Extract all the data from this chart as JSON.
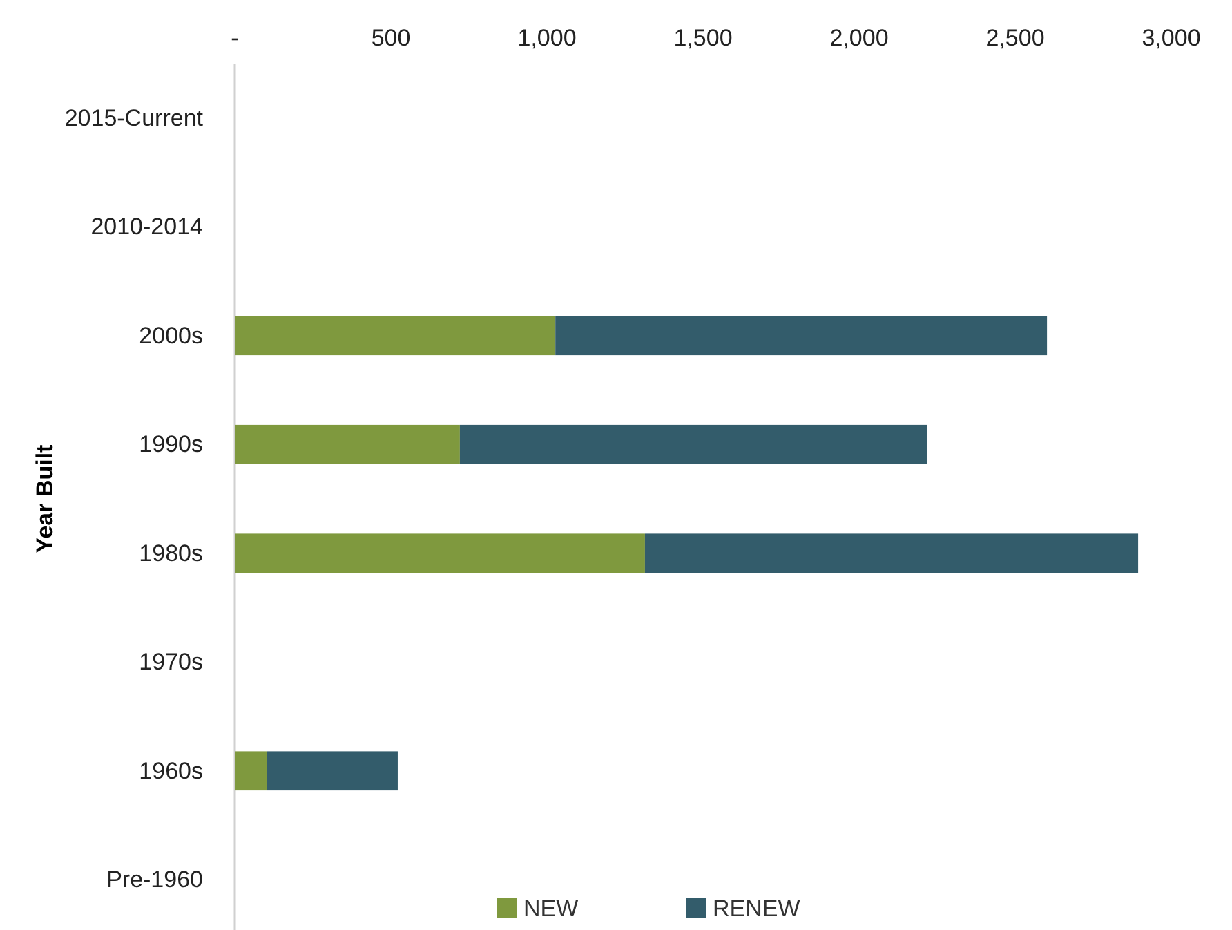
{
  "chart_data": {
    "type": "bar",
    "orientation": "horizontal",
    "stacked": true,
    "ylabel": "Year Built",
    "categories": [
      "2015-Current",
      "2010-2014",
      "2000s",
      "1990s",
      "1980s",
      "1970s",
      "1960s",
      "Pre-1960"
    ],
    "series": [
      {
        "name": "NEW",
        "color": "#7f993e",
        "values": [
          null,
          null,
          1027,
          721,
          1314,
          null,
          102,
          null
        ]
      },
      {
        "name": "RENEW",
        "color": "#335c6b",
        "values": [
          null,
          null,
          1575,
          1496,
          1580,
          null,
          420,
          null
        ]
      }
    ],
    "xlim": [
      0,
      3000
    ],
    "xticks": [
      {
        "value": 0,
        "label": "-"
      },
      500,
      {
        "value": 1000,
        "label": "1,000"
      },
      {
        "value": 1500,
        "label": "1,500"
      },
      {
        "value": 2000,
        "label": "2,000"
      },
      {
        "value": 2500,
        "label": "2,500"
      },
      {
        "value": 3000,
        "label": "3,000"
      }
    ],
    "grid": false,
    "legend": "bottom"
  }
}
